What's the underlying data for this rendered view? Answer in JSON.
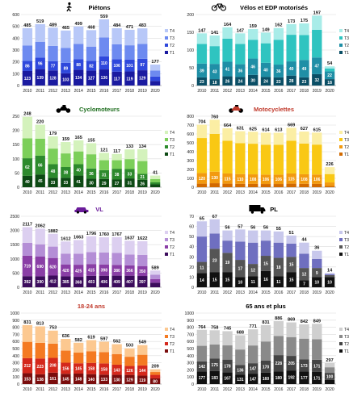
{
  "chart_data": [
    {
      "type": "bar",
      "stacked": true,
      "title": "Piétons",
      "icon": "pedestrian-icon",
      "categories": [
        "2010",
        "2011",
        "2012",
        "2013",
        "2014",
        "2015",
        "2016",
        "2017",
        "2018",
        "2019",
        "2020"
      ],
      "totals": [
        485,
        519,
        489,
        465,
        499,
        468,
        559,
        484,
        471,
        483,
        177
      ],
      "ylim": [
        0,
        600
      ],
      "yticks": [
        0,
        100,
        200,
        300,
        400,
        500,
        600
      ],
      "series": [
        {
          "name": "T1",
          "color": "#1a1aa0",
          "values": [
            123,
            139,
            128,
            103,
            134,
            127,
            136,
            117,
            119,
            129,
            39
          ]
        },
        {
          "name": "T2",
          "color": "#2f48dc",
          "values": [
            86,
            96,
            77,
            89,
            88,
            82,
            110,
            106,
            101,
            97,
            37
          ]
        },
        {
          "name": "T3",
          "color": "#6d8af0",
          "values": [
            130,
            135,
            130,
            125,
            130,
            120,
            160,
            125,
            120,
            125,
            50
          ]
        },
        {
          "name": "T4",
          "color": "#b8c8f8",
          "values": [
            146,
            149,
            154,
            148,
            147,
            139,
            153,
            136,
            131,
            132,
            51
          ]
        }
      ],
      "legend_position": "right",
      "grid": true,
      "title_color": "#000000"
    },
    {
      "type": "bar",
      "stacked": true,
      "title": "Vélos et EDP motorisés",
      "icon": "bicycle-icon",
      "categories": [
        "2010",
        "2011",
        "2012",
        "2013",
        "2014",
        "2015",
        "2016",
        "2017",
        "2018",
        "2019",
        "2020"
      ],
      "totals": [
        147,
        141,
        164,
        147,
        159,
        149,
        162,
        173,
        175,
        197,
        54
      ],
      "ylim": [
        0,
        200
      ],
      "yticks": [
        0,
        50,
        100,
        150,
        200
      ],
      "series": [
        {
          "name": "T1",
          "color": "#0b4f66",
          "values": [
            23,
            18,
            26,
            24,
            30,
            24,
            23,
            28,
            23,
            32,
            18
          ]
        },
        {
          "name": "T2",
          "color": "#1f8fa6",
          "values": [
            39,
            43,
            41,
            36,
            46,
            40,
            36,
            40,
            49,
            47,
            22
          ]
        },
        {
          "name": "T3",
          "color": "#2fc4c0",
          "values": [
            55,
            50,
            65,
            57,
            53,
            55,
            70,
            75,
            70,
            78,
            8
          ]
        },
        {
          "name": "T4",
          "color": "#a8ece8",
          "values": [
            30,
            30,
            32,
            30,
            30,
            30,
            33,
            30,
            33,
            40,
            6
          ]
        }
      ],
      "legend_position": "right",
      "grid": true,
      "title_color": "#000000"
    },
    {
      "type": "bar",
      "stacked": true,
      "title": "Cyclomoteurs",
      "icon": "moped-icon",
      "categories": [
        "2010",
        "2011",
        "2012",
        "2013",
        "2014",
        "2015",
        "2016",
        "2017",
        "2018",
        "2019",
        "2020"
      ],
      "totals": [
        248,
        220,
        179,
        159,
        165,
        155,
        121,
        117,
        133,
        134,
        41
      ],
      "ylim": [
        0,
        250
      ],
      "yticks": [
        0,
        50,
        100,
        150,
        200,
        250
      ],
      "series": [
        {
          "name": "T1",
          "color": "#0d4a14",
          "values": [
            40,
            45,
            33,
            33,
            41,
            30,
            29,
            27,
            31,
            26,
            10
          ]
        },
        {
          "name": "T2",
          "color": "#2d8a2d",
          "values": [
            62,
            66,
            48,
            38,
            40,
            36,
            31,
            38,
            33,
            21,
            7
          ]
        },
        {
          "name": "T3",
          "color": "#7ccf5a",
          "values": [
            70,
            60,
            55,
            48,
            45,
            50,
            35,
            30,
            35,
            45,
            12
          ]
        },
        {
          "name": "T4",
          "color": "#d4f2bc",
          "values": [
            76,
            49,
            43,
            40,
            39,
            39,
            26,
            22,
            34,
            42,
            12
          ]
        }
      ],
      "legend_position": "right",
      "grid": true,
      "title_color": "#1a6b1a"
    },
    {
      "type": "bar",
      "stacked": true,
      "title": "Motocyclettes",
      "icon": "motorcycle-icon",
      "categories": [
        "2010",
        "2011",
        "2012",
        "2013",
        "2014",
        "2015",
        "2016",
        "2017",
        "2018",
        "2019",
        "2020"
      ],
      "totals": [
        704,
        760,
        664,
        631,
        625,
        614,
        613,
        669,
        627,
        615,
        226
      ],
      "ylim": [
        0,
        800
      ],
      "yticks": [
        0,
        100,
        200,
        300,
        400,
        500,
        600,
        700,
        800
      ],
      "series": [
        {
          "name": "T1",
          "color": "#d26a00",
          "values": [
            40,
            45,
            40,
            38,
            37,
            36,
            36,
            40,
            38,
            37,
            14
          ]
        },
        {
          "name": "T2",
          "color": "#f29a10",
          "values": [
            120,
            130,
            115,
            110,
            108,
            106,
            106,
            115,
            108,
            106,
            40
          ]
        },
        {
          "name": "T3",
          "color": "#f9c814",
          "values": [
            394,
            425,
            369,
            348,
            345,
            337,
            336,
            369,
            346,
            337,
            94
          ]
        },
        {
          "name": "T4",
          "color": "#fbeea4",
          "values": [
            150,
            160,
            140,
            135,
            135,
            135,
            135,
            145,
            135,
            135,
            78
          ]
        }
      ],
      "legend_position": "right",
      "grid": true,
      "title_color": "#c0392b"
    },
    {
      "type": "bar",
      "stacked": true,
      "title": "VL",
      "icon": "car-icon",
      "categories": [
        "2010",
        "2011",
        "2012",
        "2013",
        "2014",
        "2015",
        "2016",
        "2017",
        "2018",
        "2019",
        "2020"
      ],
      "totals": [
        2117,
        2062,
        1882,
        1612,
        1663,
        1796,
        1760,
        1767,
        1637,
        1622,
        589
      ],
      "ylim": [
        0,
        2500
      ],
      "yticks": [
        0,
        500,
        1000,
        1500,
        2000,
        2500
      ],
      "series": [
        {
          "name": "T1",
          "color": "#3c0c5c",
          "values": [
            392,
            390,
            412,
            385,
            368,
            403,
            406,
            409,
            407,
            397,
            161
          ]
        },
        {
          "name": "T2",
          "color": "#8a3ea6",
          "values": [
            719,
            690,
            620,
            420,
            425,
            415,
            398,
            380,
            366,
            350,
            130
          ]
        },
        {
          "name": "T3",
          "color": "#b48ed6",
          "values": [
            456,
            432,
            400,
            380,
            390,
            420,
            420,
            420,
            380,
            395,
            150
          ]
        },
        {
          "name": "T4",
          "color": "#dccff0",
          "values": [
            550,
            550,
            450,
            427,
            480,
            558,
            536,
            558,
            484,
            480,
            148
          ]
        }
      ],
      "legend_position": "right",
      "grid": true,
      "title_color": "#6a1b9a"
    },
    {
      "type": "bar",
      "stacked": true,
      "title": "PL",
      "icon": "truck-icon",
      "categories": [
        "2010",
        "2011",
        "2012",
        "2013",
        "2014",
        "2015",
        "2016",
        "2017",
        "2018",
        "2019",
        "2020"
      ],
      "totals": [
        65,
        67,
        56,
        57,
        56,
        56,
        55,
        51,
        44,
        36,
        14
      ],
      "ylim": [
        0,
        70
      ],
      "yticks": [
        0,
        10,
        20,
        30,
        40,
        50,
        60,
        70
      ],
      "series": [
        {
          "name": "T1",
          "color": "#111111",
          "values": [
            14,
            15,
            15,
            10,
            11,
            16,
            11,
            15,
            7,
            10,
            10
          ]
        },
        {
          "name": "T2",
          "color": "#555555",
          "values": [
            11,
            23,
            19,
            17,
            12,
            15,
            18,
            15,
            12,
            9,
            2
          ]
        },
        {
          "name": "T3",
          "color": "#6f6fc0",
          "values": [
            25,
            15,
            12,
            18,
            21,
            15,
            15,
            13,
            14,
            9,
            1
          ]
        },
        {
          "name": "T4",
          "color": "#c8c8ec",
          "values": [
            15,
            14,
            10,
            12,
            12,
            10,
            11,
            8,
            11,
            8,
            1
          ]
        }
      ],
      "legend_position": "right",
      "grid": true,
      "title_color": "#000000"
    },
    {
      "type": "bar",
      "stacked": true,
      "title": "18-24 ans",
      "icon": "",
      "categories": [
        "2010",
        "2011",
        "2012",
        "2013",
        "2014",
        "2015",
        "2016",
        "2017",
        "2018",
        "2019",
        "2020"
      ],
      "totals": [
        831,
        813,
        753,
        636,
        582,
        619,
        597,
        562,
        503,
        549,
        209
      ],
      "ylim": [
        0,
        1000
      ],
      "yticks": [
        0,
        100,
        200,
        300,
        400,
        500,
        600,
        700,
        800,
        900,
        1000
      ],
      "series": [
        {
          "name": "T1",
          "color": "#7a0d0d",
          "values": [
            153,
            138,
            161,
            145,
            148,
            140,
            133,
            130,
            129,
            119,
            80
          ]
        },
        {
          "name": "T2",
          "color": "#d4281c",
          "values": [
            212,
            223,
            208,
            156,
            145,
            158,
            158,
            143,
            126,
            144,
            50
          ]
        },
        {
          "name": "T3",
          "color": "#f47a22",
          "values": [
            230,
            220,
            200,
            170,
            150,
            165,
            160,
            150,
            130,
            150,
            40
          ]
        },
        {
          "name": "T4",
          "color": "#fcc890",
          "values": [
            236,
            232,
            184,
            165,
            139,
            156,
            146,
            139,
            118,
            136,
            39
          ]
        }
      ],
      "legend_position": "right",
      "grid": true,
      "title_color": "#c0392b"
    },
    {
      "type": "bar",
      "stacked": true,
      "title": "65 ans et plus",
      "icon": "",
      "categories": [
        "2010",
        "2011",
        "2012",
        "2013",
        "2014",
        "2015",
        "2016",
        "2017",
        "2018",
        "2019",
        "2020"
      ],
      "totals": [
        764,
        758,
        745,
        688,
        771,
        831,
        886,
        869,
        842,
        849,
        297
      ],
      "ylim": [
        0,
        1000
      ],
      "yticks": [
        0,
        100,
        200,
        300,
        400,
        500,
        600,
        700,
        800,
        900,
        1000
      ],
      "series": [
        {
          "name": "T1",
          "color": "#111111",
          "values": [
            177,
            183,
            167,
            131,
            147,
            160,
            180,
            192,
            177,
            171,
            58
          ]
        },
        {
          "name": "T2",
          "color": "#444444",
          "values": [
            142,
            175,
            178,
            136,
            147,
            170,
            228,
            205,
            173,
            171,
            100
          ]
        },
        {
          "name": "T3",
          "color": "#8a8a8a",
          "values": [
            220,
            200,
            200,
            220,
            250,
            270,
            270,
            265,
            290,
            290,
            79
          ]
        },
        {
          "name": "T4",
          "color": "#cfcfcf",
          "values": [
            225,
            200,
            200,
            201,
            227,
            231,
            208,
            207,
            202,
            217,
            60
          ]
        }
      ],
      "legend_position": "right",
      "grid": true,
      "title_color": "#000000"
    }
  ]
}
